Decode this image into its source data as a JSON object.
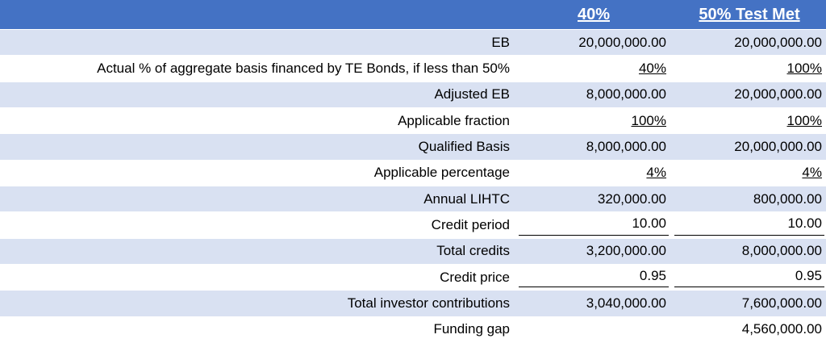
{
  "table": {
    "headers": [
      "40%",
      "50% Test Met"
    ],
    "rows": [
      {
        "label": "EB",
        "values": [
          "20,000,000.00",
          "20,000,000.00"
        ]
      },
      {
        "label": "Actual % of aggregate basis financed by TE Bonds, if less than 50%",
        "values": [
          "40%",
          "100%"
        ],
        "style": "underline"
      },
      {
        "label": "Adjusted EB",
        "values": [
          "8,000,000.00",
          "20,000,000.00"
        ]
      },
      {
        "label": "Applicable fraction",
        "values": [
          "100%",
          "100%"
        ],
        "style": "underline"
      },
      {
        "label": "Qualified Basis",
        "values": [
          "8,000,000.00",
          "20,000,000.00"
        ]
      },
      {
        "label": "Applicable percentage",
        "values": [
          "4%",
          "4%"
        ],
        "style": "underline"
      },
      {
        "label": "Annual LIHTC",
        "values": [
          "320,000.00",
          "800,000.00"
        ]
      },
      {
        "label": "Credit period",
        "values": [
          "10.00",
          "10.00"
        ],
        "style": "rule"
      },
      {
        "label": "Total credits",
        "values": [
          "3,200,000.00",
          "8,000,000.00"
        ]
      },
      {
        "label": "Credit price",
        "values": [
          "0.95",
          "0.95"
        ],
        "style": "rule"
      },
      {
        "label": "Total investor contributions",
        "values": [
          "3,040,000.00",
          "7,600,000.00"
        ]
      },
      {
        "label": "Funding gap",
        "values": [
          null,
          "4,560,000.00"
        ]
      }
    ]
  }
}
